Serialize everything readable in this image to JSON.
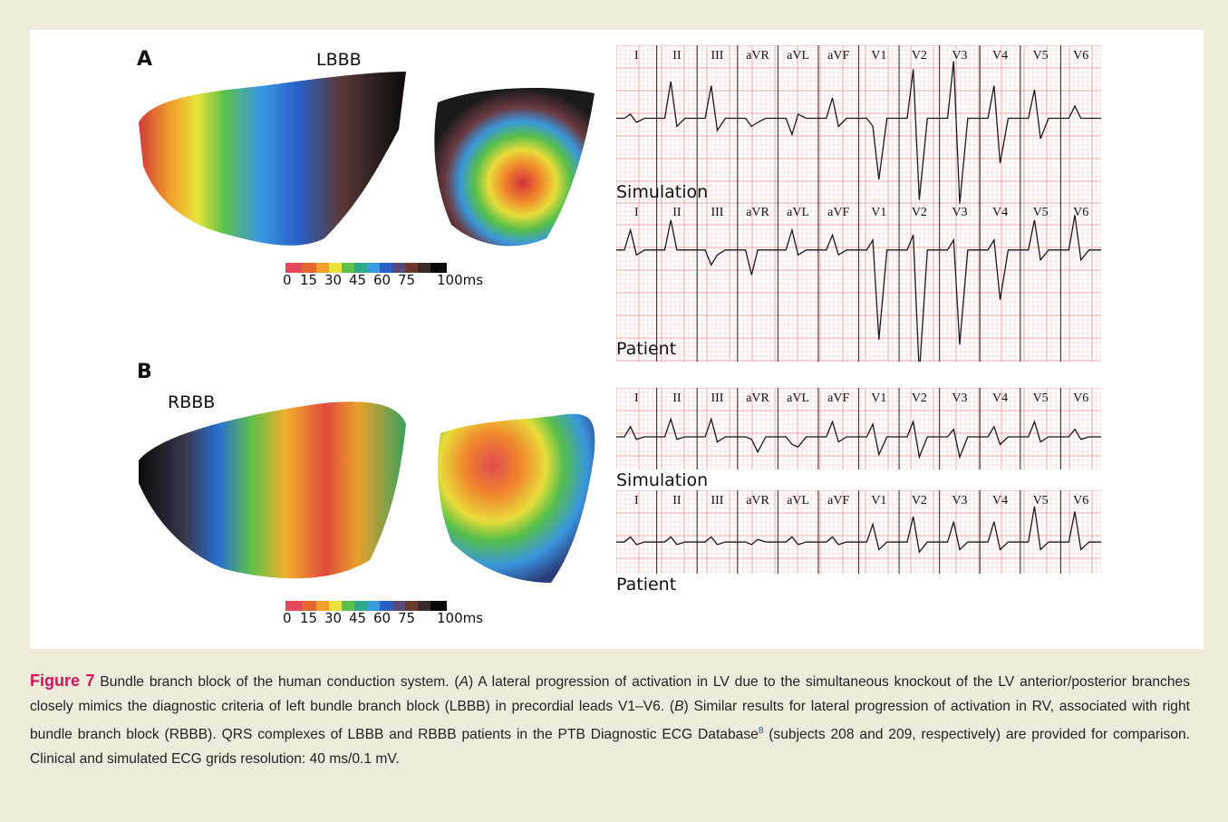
{
  "panel_a": {
    "letter": "A",
    "map_label": "LBBB",
    "scale_ticks": [
      "0",
      "15",
      "30",
      "45",
      "60",
      "75",
      "100ms"
    ],
    "simulation_label": "Simulation",
    "patient_label": "Patient"
  },
  "panel_b": {
    "letter": "B",
    "map_label": "RBBB",
    "scale_ticks": [
      "0",
      "15",
      "30",
      "45",
      "60",
      "75",
      "100ms"
    ],
    "simulation_label": "Simulation",
    "patient_label": "Patient"
  },
  "leads": [
    "I",
    "II",
    "III",
    "aVR",
    "aVL",
    "aVF",
    "V1",
    "V2",
    "V3",
    "V4",
    "V5",
    "V6"
  ],
  "colors": {
    "ecg_grid_minor": "#f6c9c9",
    "ecg_grid_major": "#e98f8f",
    "ecg_trace": "#1a1a1a",
    "figure_label": "#d4145a",
    "caption_background": "#eeebdb"
  },
  "caption": {
    "figure_label": "Figure 7",
    "text_1": " Bundle branch block of the human conduction system. (",
    "em_a": "A",
    "text_2": ") A lateral progression of activation in LV due to the simultaneous knockout of the LV anterior/posterior branches closely mimics the diagnostic criteria of left bundle branch block (LBBB) in precordial leads V1–V6. (",
    "em_b": "B",
    "text_3": ") Similar results for lateral progression of activation in RV, associated with right bundle branch block (RBBB). QRS complexes of LBBB and RBBB patients in the PTB Diagnostic ECG Database",
    "ref": "8",
    "text_4": " (subjects 208 and 209, respectively) are provided for comparison. Clinical and simulated ECG grids resolution: 40 ms/0.1 mV."
  }
}
